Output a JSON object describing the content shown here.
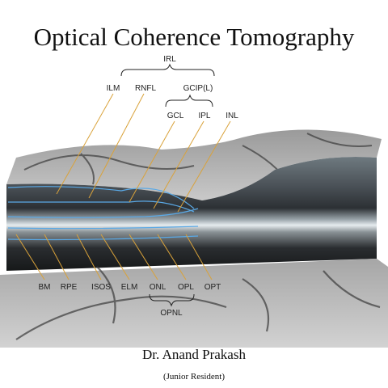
{
  "title": "Optical Coherence Tomography",
  "labels": [
    "IRL",
    "ILM",
    "RNFL",
    "GCIP(L)",
    "GCL",
    "IPL",
    "INL",
    "BM",
    "RPE",
    "ISOS",
    "ELM",
    "ONL",
    "OPL",
    "OPT",
    "OPNL"
  ],
  "author": "Dr. Anand Prakash",
  "role": "(Junior Resident)"
}
